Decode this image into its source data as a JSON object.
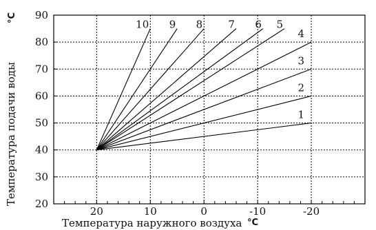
{
  "chart_data": {
    "type": "line",
    "title": "",
    "xlabel": "Температура наружного воздуха",
    "xlabel_unit": "°C",
    "ylabel": "Температура подачи воды",
    "ylabel_unit": "°C",
    "x_reversed": true,
    "xlim": [
      28,
      -30
    ],
    "ylim": [
      20,
      90
    ],
    "grid": "dotted",
    "x_ticks": [
      20,
      10,
      0,
      -10,
      -20
    ],
    "x_tick_labels": [
      "20",
      "10",
      "0",
      "-10",
      "-20"
    ],
    "y_ticks": [
      20,
      30,
      40,
      50,
      60,
      70,
      80,
      90
    ],
    "y_tick_labels": [
      "20",
      "30",
      "40",
      "50",
      "60",
      "70",
      "80",
      "90"
    ],
    "series": [
      {
        "name": "1",
        "points": [
          [
            20,
            40
          ],
          [
            -20,
            50
          ]
        ]
      },
      {
        "name": "2",
        "points": [
          [
            20,
            40
          ],
          [
            -20,
            60
          ]
        ]
      },
      {
        "name": "3",
        "points": [
          [
            20,
            40
          ],
          [
            -20,
            70
          ]
        ]
      },
      {
        "name": "4",
        "points": [
          [
            20,
            40
          ],
          [
            -20,
            80
          ]
        ]
      },
      {
        "name": "5",
        "points": [
          [
            20,
            40
          ],
          [
            -15,
            85
          ]
        ]
      },
      {
        "name": "6",
        "points": [
          [
            20,
            40
          ],
          [
            -11,
            85
          ]
        ]
      },
      {
        "name": "7",
        "points": [
          [
            20,
            40
          ],
          [
            -6,
            85
          ]
        ]
      },
      {
        "name": "8",
        "points": [
          [
            20,
            40
          ],
          [
            0,
            85
          ]
        ]
      },
      {
        "name": "9",
        "points": [
          [
            20,
            40
          ],
          [
            5,
            85
          ]
        ]
      },
      {
        "name": "10",
        "points": [
          [
            20,
            40
          ],
          [
            10,
            85
          ]
        ]
      }
    ]
  }
}
